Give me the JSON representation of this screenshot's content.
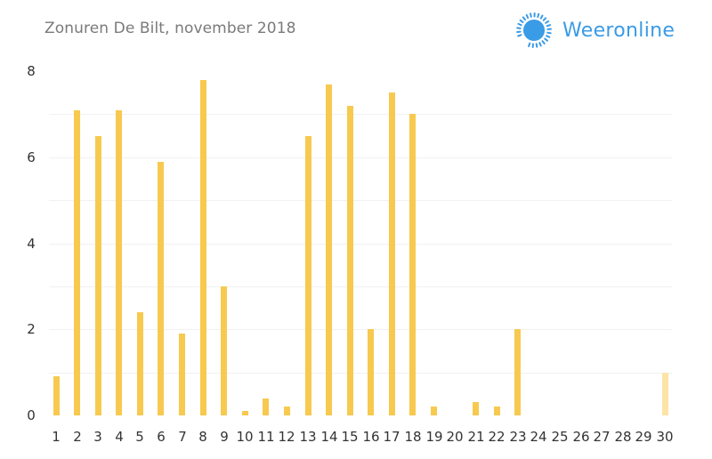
{
  "header": {
    "title": "Zonuren De Bilt, november 2018",
    "brand": "Weeronline",
    "brand_icon": "sun-icon",
    "brand_color": "#3a9be6"
  },
  "colors": {
    "bar": "#f7c94f",
    "bar_pale": "#fbe4a6",
    "grid": "#f1f1f1",
    "title": "#7a7a7a"
  },
  "chart_data": {
    "type": "bar",
    "title": "Zonuren De Bilt, november 2018",
    "xlabel": "",
    "ylabel": "",
    "ylim": [
      0,
      8
    ],
    "yticks": [
      0,
      2,
      4,
      6,
      8
    ],
    "grid": true,
    "legend": null,
    "categories": [
      "1",
      "2",
      "3",
      "4",
      "5",
      "6",
      "7",
      "8",
      "9",
      "10",
      "11",
      "12",
      "13",
      "14",
      "15",
      "16",
      "17",
      "18",
      "19",
      "20",
      "21",
      "22",
      "23",
      "24",
      "25",
      "26",
      "27",
      "28",
      "29",
      "30"
    ],
    "values": [
      0.9,
      7.1,
      6.5,
      7.1,
      2.4,
      5.9,
      1.9,
      7.8,
      3.0,
      0.1,
      0.4,
      0.2,
      6.5,
      7.7,
      7.2,
      2.0,
      7.5,
      7.0,
      0.2,
      0.0,
      0.3,
      0.2,
      2.0,
      0.0,
      0.0,
      0.0,
      0.0,
      0.0,
      0.0,
      1.0
    ],
    "pale_indices": [
      29
    ],
    "annotations": [
      "Day 30 bar shown in a lighter (pale) yellow"
    ]
  }
}
